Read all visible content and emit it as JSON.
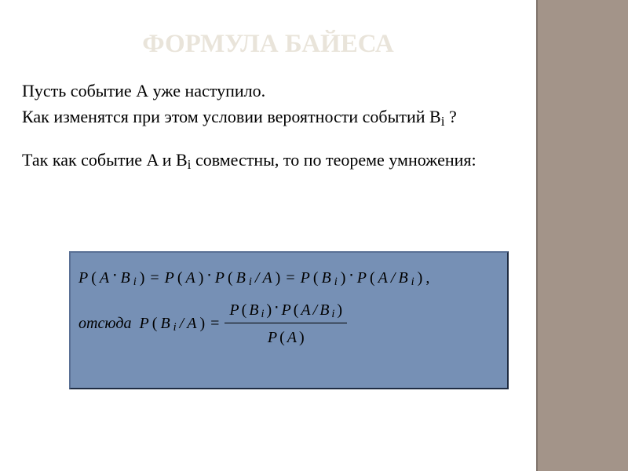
{
  "title": {
    "text": "ФОРМУЛА БАЙЕСА",
    "color": "#e9e4da"
  },
  "paragraph": {
    "color": "#000000",
    "line1_pre": "Пусть событие А уже наступило.",
    "line2_pre": "Как изменятся при этом условии вероятности событий B",
    "line2_sub": "i",
    "line2_post": " ?",
    "line3_pre": "Так как событие A и B",
    "line3_sub": "i",
    "line3_post": " совместны, то по теореме умножения:"
  },
  "formula": {
    "box_background": "#7690b5",
    "text_color": "#000000",
    "tokens": {
      "P": "P",
      "A": "A",
      "B": "B",
      "i": "i",
      "lp": "(",
      "rp": ")",
      "eq": "=",
      "dot": "⋅",
      "slash": "/",
      "comma": ",",
      "hence": "отсюда"
    }
  }
}
